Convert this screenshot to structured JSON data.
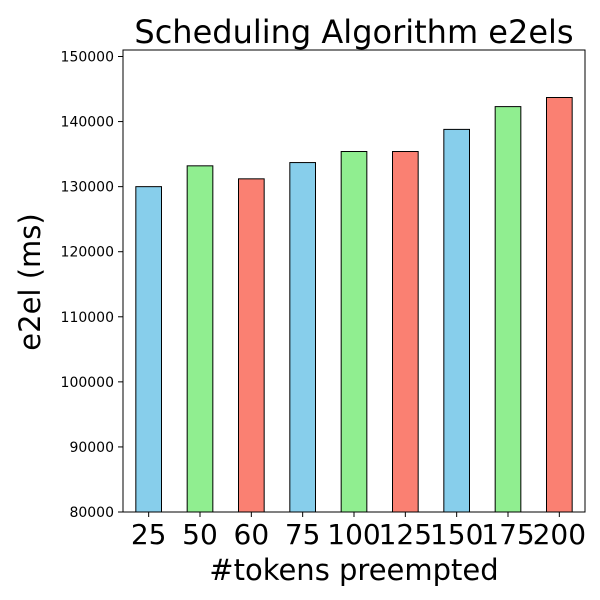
{
  "chart_data": {
    "type": "bar",
    "title": "Scheduling Algorithm e2els",
    "xlabel": "#tokens preempted",
    "ylabel": "e2el (ms)",
    "categories": [
      "25",
      "50",
      "60",
      "75",
      "100",
      "125",
      "150",
      "175",
      "200"
    ],
    "values": [
      130000,
      133200,
      131200,
      133700,
      135400,
      135400,
      138800,
      142300,
      143700
    ],
    "colors": [
      "#87ceeb",
      "#90ee90",
      "#fa8072",
      "#87ceeb",
      "#90ee90",
      "#fa8072",
      "#87ceeb",
      "#90ee90",
      "#fa8072"
    ],
    "edge_color": "#000000",
    "ylim": [
      80000,
      151000
    ],
    "yticks": [
      80000,
      90000,
      100000,
      110000,
      120000,
      130000,
      140000,
      150000
    ],
    "grid": false,
    "legend": "none"
  }
}
